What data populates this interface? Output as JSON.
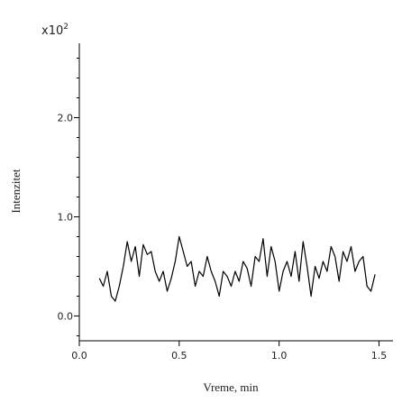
{
  "chart_data": {
    "type": "line",
    "y_label": "Intenzitet",
    "x_label": "Vreme, min",
    "y_multiplier": "x10",
    "y_multiplier_exponent": "2",
    "x": [
      0.1,
      0.12,
      0.14,
      0.16,
      0.18,
      0.2,
      0.22,
      0.24,
      0.26,
      0.28,
      0.3,
      0.32,
      0.34,
      0.36,
      0.38,
      0.4,
      0.42,
      0.44,
      0.46,
      0.48,
      0.5,
      0.52,
      0.54,
      0.56,
      0.58,
      0.6,
      0.62,
      0.64,
      0.66,
      0.68,
      0.7,
      0.72,
      0.74,
      0.76,
      0.78,
      0.8,
      0.82,
      0.84,
      0.86,
      0.88,
      0.9,
      0.92,
      0.94,
      0.96,
      0.98,
      1.0,
      1.02,
      1.04,
      1.06,
      1.08,
      1.1,
      1.12,
      1.14,
      1.16,
      1.18,
      1.2,
      1.22,
      1.24,
      1.26,
      1.28,
      1.3,
      1.32,
      1.34,
      1.36,
      1.38,
      1.4,
      1.42,
      1.44,
      1.46,
      1.48
    ],
    "series": [
      {
        "color": "#000000",
        "values": [
          0.38,
          0.3,
          0.45,
          0.2,
          0.15,
          0.3,
          0.5,
          0.75,
          0.55,
          0.7,
          0.4,
          0.72,
          0.62,
          0.65,
          0.45,
          0.35,
          0.45,
          0.25,
          0.38,
          0.55,
          0.8,
          0.65,
          0.5,
          0.55,
          0.3,
          0.45,
          0.4,
          0.6,
          0.45,
          0.35,
          0.2,
          0.45,
          0.4,
          0.3,
          0.45,
          0.35,
          0.55,
          0.48,
          0.3,
          0.6,
          0.55,
          0.78,
          0.4,
          0.7,
          0.55,
          0.25,
          0.45,
          0.55,
          0.4,
          0.65,
          0.35,
          0.75,
          0.5,
          0.2,
          0.5,
          0.38,
          0.55,
          0.45,
          0.7,
          0.6,
          0.35,
          0.65,
          0.55,
          0.7,
          0.45,
          0.55,
          0.6,
          0.3,
          0.25,
          0.42
        ]
      }
    ],
    "xlim": [
      0,
      1.57
    ],
    "ylim": [
      -0.25,
      2.75
    ],
    "xticks": [
      {
        "value": 0,
        "label": "0.0"
      },
      0.5,
      {
        "value": 1,
        "label": "1.0"
      },
      1.5
    ],
    "yticks": [
      {
        "value": 0,
        "label": "0.0"
      },
      {
        "value": 1,
        "label": "1.0"
      },
      {
        "value": 2,
        "label": "2.0"
      }
    ],
    "yminorticks": [
      -0.2,
      0.2,
      0.4,
      0.6,
      0.8,
      1.2,
      1.4,
      1.6,
      1.8,
      2.2,
      2.4,
      2.6
    ]
  }
}
